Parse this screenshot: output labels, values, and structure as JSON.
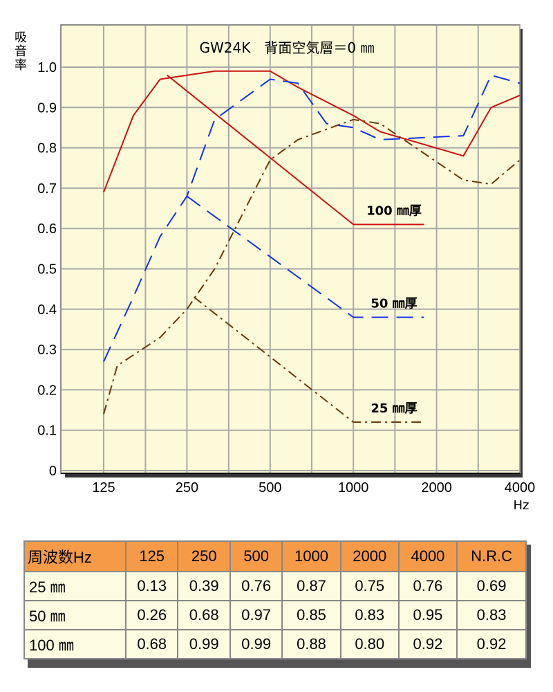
{
  "chart_data": {
    "type": "line",
    "title": "GW24K　背面空気層＝0 ㎜",
    "ylabel": "吸音率",
    "xlabel": "Hz",
    "x": [
      125,
      250,
      500,
      1000,
      2000,
      4000
    ],
    "x_scale": "log",
    "xlim": [
      100,
      4000
    ],
    "ylim": [
      0,
      1.0
    ],
    "yticks": [
      "0",
      "0.1",
      "0.2",
      "0.3",
      "0.4",
      "0.5",
      "0.6",
      "0.7",
      "0.8",
      "0.9",
      "1.0"
    ],
    "xticks": [
      "125",
      "250",
      "500",
      "1000",
      "2000",
      "4000"
    ],
    "grid": true,
    "series": [
      {
        "name": "100 ㎜厚",
        "color": "#cc1111",
        "style": "solid",
        "points": [
          [
            125,
            0.69
          ],
          [
            160,
            0.88
          ],
          [
            200,
            0.97
          ],
          [
            315,
            0.99
          ],
          [
            500,
            0.99
          ],
          [
            630,
            0.95
          ],
          [
            1000,
            0.88
          ],
          [
            1250,
            0.84
          ],
          [
            2500,
            0.78
          ],
          [
            3150,
            0.9
          ],
          [
            4000,
            0.93
          ]
        ],
        "nrc_points": [
          [
            212,
            0.98
          ],
          [
            1000,
            0.61
          ],
          [
            1800,
            0.61
          ]
        ]
      },
      {
        "name": "50 ㎜厚",
        "color": "#1133ee",
        "style": "dashed",
        "points": [
          [
            125,
            0.27
          ],
          [
            160,
            0.43
          ],
          [
            200,
            0.58
          ],
          [
            250,
            0.68
          ],
          [
            315,
            0.87
          ],
          [
            500,
            0.97
          ],
          [
            630,
            0.96
          ],
          [
            800,
            0.86
          ],
          [
            1000,
            0.85
          ],
          [
            1250,
            0.82
          ],
          [
            2500,
            0.83
          ],
          [
            3150,
            0.98
          ],
          [
            4000,
            0.96
          ]
        ],
        "nrc_points": [
          [
            250,
            0.68
          ],
          [
            1000,
            0.38
          ],
          [
            1800,
            0.38
          ]
        ]
      },
      {
        "name": "25 ㎜厚",
        "color": "#6b3a0a",
        "style": "dashdot",
        "points": [
          [
            125,
            0.14
          ],
          [
            140,
            0.26
          ],
          [
            200,
            0.33
          ],
          [
            250,
            0.4
          ],
          [
            315,
            0.5
          ],
          [
            500,
            0.77
          ],
          [
            630,
            0.82
          ],
          [
            1000,
            0.87
          ],
          [
            1250,
            0.86
          ],
          [
            2500,
            0.72
          ],
          [
            3150,
            0.71
          ],
          [
            4000,
            0.77
          ]
        ],
        "nrc_points": [
          [
            265,
            0.43
          ],
          [
            1000,
            0.12
          ],
          [
            1800,
            0.12
          ]
        ]
      }
    ]
  },
  "table": {
    "header": [
      "周波数Hz",
      "125",
      "250",
      "500",
      "1000",
      "2000",
      "4000",
      "N.R.C"
    ],
    "rows": [
      [
        "25 ㎜",
        "0.13",
        "0.39",
        "0.76",
        "0.87",
        "0.75",
        "0.76",
        "0.69"
      ],
      [
        "50 ㎜",
        "0.26",
        "0.68",
        "0.97",
        "0.85",
        "0.83",
        "0.95",
        "0.83"
      ],
      [
        "100 ㎜",
        "0.68",
        "0.99",
        "0.99",
        "0.88",
        "0.80",
        "0.92",
        "0.92"
      ]
    ]
  }
}
